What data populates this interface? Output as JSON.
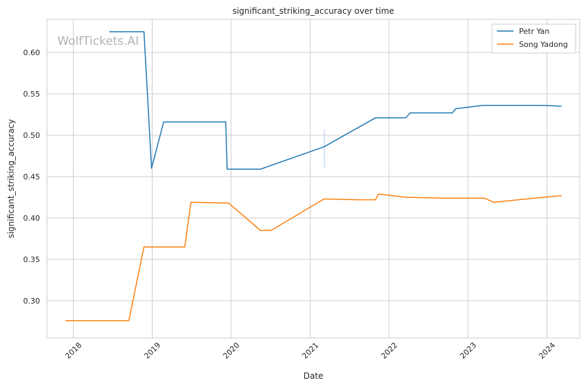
{
  "chart_data": {
    "type": "line",
    "title": "significant_striking_accuracy over time",
    "xlabel": "Date",
    "ylabel": "significant_striking_accuracy",
    "watermark": "WolfTickets.AI",
    "xlim": [
      "2017-09-01",
      "2024-06-01"
    ],
    "ylim": [
      0.255,
      0.64
    ],
    "x_ticks": [
      {
        "date": "2018-01-01",
        "label": "2018"
      },
      {
        "date": "2019-01-01",
        "label": "2019"
      },
      {
        "date": "2020-01-01",
        "label": "2020"
      },
      {
        "date": "2021-01-01",
        "label": "2021"
      },
      {
        "date": "2022-01-01",
        "label": "2022"
      },
      {
        "date": "2023-01-01",
        "label": "2023"
      },
      {
        "date": "2024-01-01",
        "label": "2024"
      }
    ],
    "y_ticks": [
      {
        "value": 0.3,
        "label": "0.30"
      },
      {
        "value": 0.35,
        "label": "0.35"
      },
      {
        "value": 0.4,
        "label": "0.40"
      },
      {
        "value": 0.45,
        "label": "0.45"
      },
      {
        "value": 0.5,
        "label": "0.50"
      },
      {
        "value": 0.55,
        "label": "0.55"
      },
      {
        "value": 0.6,
        "label": "0.60"
      }
    ],
    "grid": true,
    "legend_position": "top-right",
    "series": [
      {
        "name": "Petr Yan",
        "color": "#1f77b4",
        "points": [
          {
            "date": "2018-06-16",
            "value": 0.625
          },
          {
            "date": "2018-11-24",
            "value": 0.625
          },
          {
            "date": "2018-12-29",
            "value": 0.46
          },
          {
            "date": "2019-02-23",
            "value": 0.516
          },
          {
            "date": "2019-06-08",
            "value": 0.516
          },
          {
            "date": "2019-12-07",
            "value": 0.516
          },
          {
            "date": "2019-12-14",
            "value": 0.459
          },
          {
            "date": "2020-05-16",
            "value": 0.459
          },
          {
            "date": "2021-03-06",
            "value": 0.486
          },
          {
            "date": "2021-10-30",
            "value": 0.521
          },
          {
            "date": "2022-03-19",
            "value": 0.521
          },
          {
            "date": "2022-04-09",
            "value": 0.527
          },
          {
            "date": "2022-10-22",
            "value": 0.527
          },
          {
            "date": "2022-11-05",
            "value": 0.532
          },
          {
            "date": "2023-03-11",
            "value": 0.536
          },
          {
            "date": "2023-12-16",
            "value": 0.536
          },
          {
            "date": "2024-03-09",
            "value": 0.535
          }
        ]
      },
      {
        "name": "Song Yadong",
        "color": "#ff7f0e",
        "points": [
          {
            "date": "2017-11-25",
            "value": 0.276
          },
          {
            "date": "2018-09-15",
            "value": 0.276
          },
          {
            "date": "2018-11-24",
            "value": 0.365
          },
          {
            "date": "2019-06-01",
            "value": 0.365
          },
          {
            "date": "2019-06-29",
            "value": 0.419
          },
          {
            "date": "2019-12-21",
            "value": 0.418
          },
          {
            "date": "2020-05-16",
            "value": 0.385
          },
          {
            "date": "2020-07-04",
            "value": 0.385
          },
          {
            "date": "2021-03-06",
            "value": 0.423
          },
          {
            "date": "2021-08-14",
            "value": 0.422
          },
          {
            "date": "2021-10-30",
            "value": 0.422
          },
          {
            "date": "2021-11-13",
            "value": 0.429
          },
          {
            "date": "2022-03-19",
            "value": 0.425
          },
          {
            "date": "2022-09-10",
            "value": 0.424
          },
          {
            "date": "2023-03-18",
            "value": 0.424
          },
          {
            "date": "2023-04-29",
            "value": 0.419
          },
          {
            "date": "2023-12-16",
            "value": 0.425
          },
          {
            "date": "2024-03-09",
            "value": 0.427
          }
        ]
      }
    ]
  }
}
